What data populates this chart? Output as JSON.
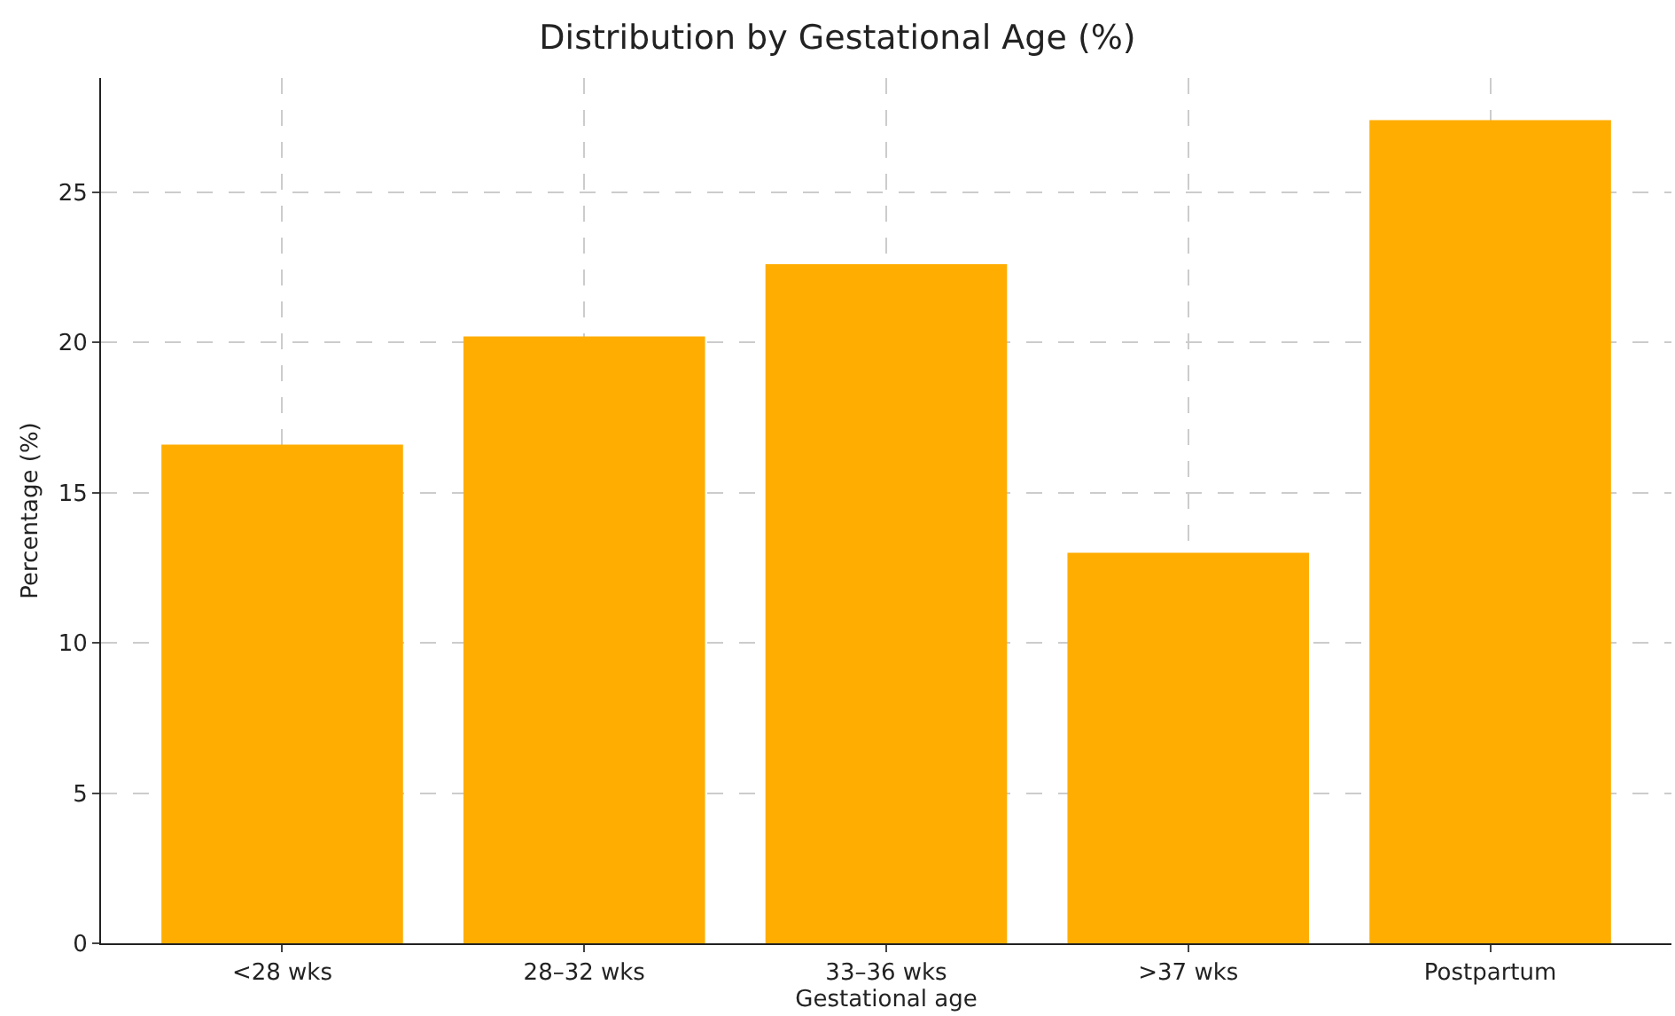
{
  "chart_data": {
    "type": "bar",
    "title": "Distribution by Gestational Age (%)",
    "xlabel": "Gestational age",
    "ylabel": "Percentage (%)",
    "categories": [
      "<28 wks",
      "28–32 wks",
      "33–36 wks",
      ">37 wks",
      "Postpartum"
    ],
    "values": [
      16.6,
      20.2,
      22.6,
      13.0,
      27.4
    ],
    "color": "#ffad00",
    "ylim": [
      0,
      28.8
    ],
    "yticks": [
      0,
      5,
      10,
      15,
      20,
      25
    ],
    "grid": true
  }
}
